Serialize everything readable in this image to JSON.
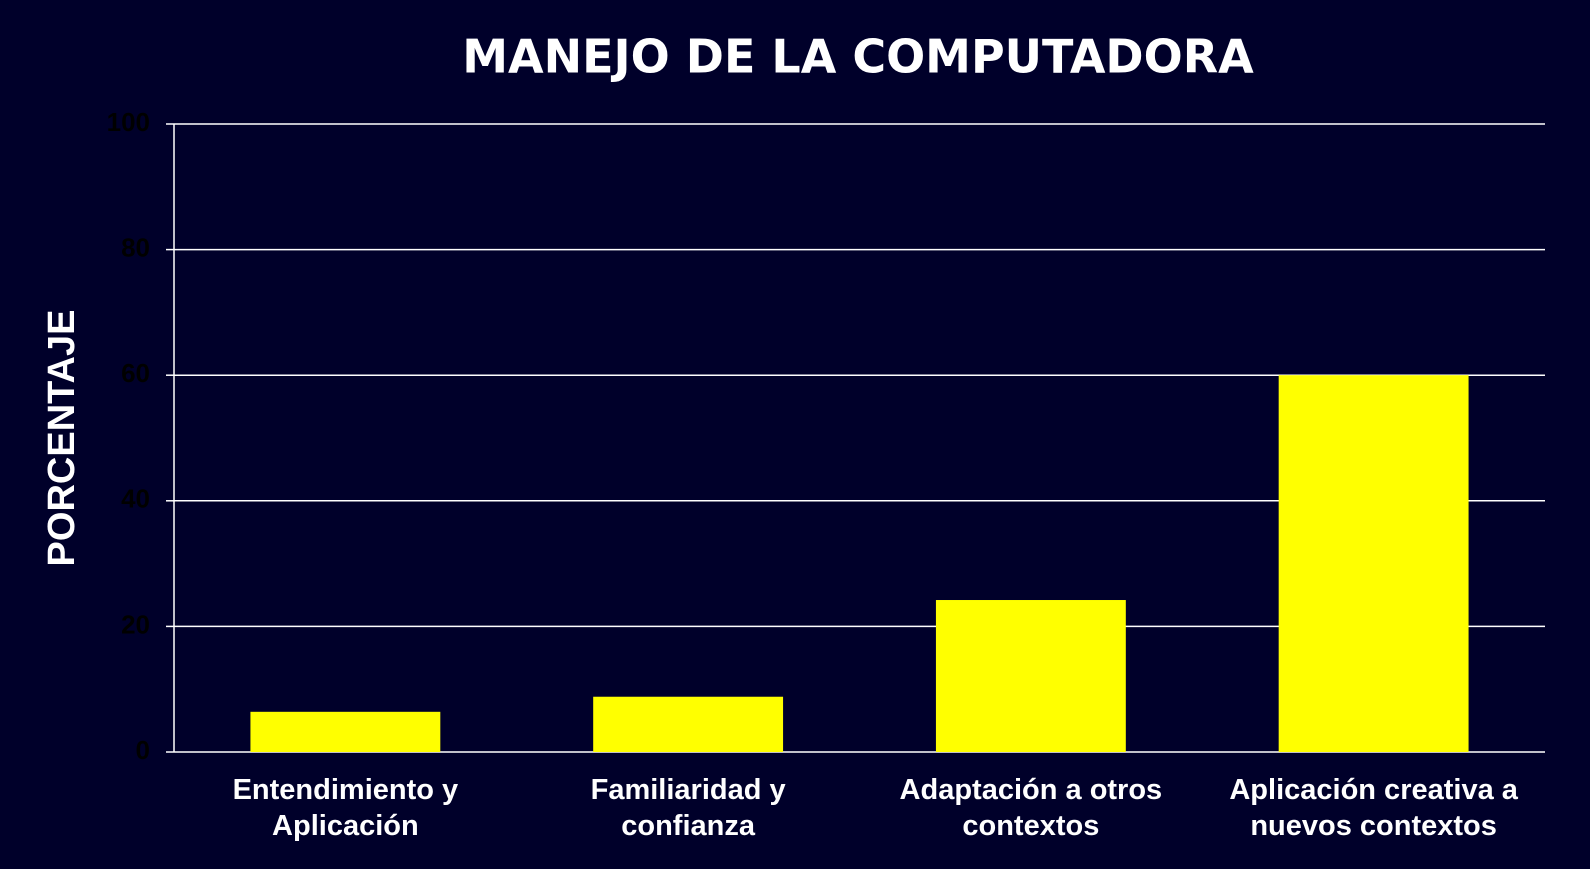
{
  "chart_data": {
    "type": "bar",
    "title": "MANEJO DE LA COMPUTADORA",
    "y_label": "PORCENTAJE",
    "categories": [
      "Entendimiento y Aplicación",
      "Familiaridad y confianza",
      "Adaptación a otros contextos",
      "Aplicación creativa a nuevos contextos"
    ],
    "values": [
      6.4,
      8.8,
      24.2,
      60
    ],
    "color": "#ffff00",
    "ylim": [
      0,
      100
    ],
    "yticks": [
      0,
      20,
      40,
      60,
      80,
      100
    ],
    "grid": true
  }
}
